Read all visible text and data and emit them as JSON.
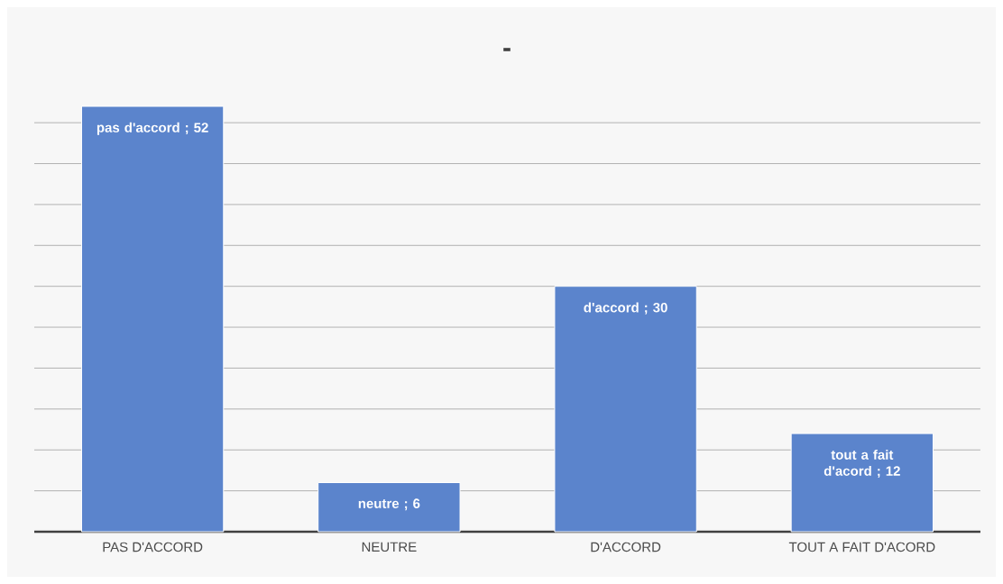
{
  "chart_data": {
    "type": "bar",
    "title": "-",
    "categories": [
      "PAS D'ACCORD",
      "NEUTRE",
      "D'ACCORD",
      "TOUT A FAIT D'ACORD"
    ],
    "values": [
      52,
      6,
      30,
      12
    ],
    "value_labels": [
      "pas d'accord ; 52",
      "neutre ; 6",
      "d'accord ; 30",
      "tout a fait d'acord ; 12"
    ],
    "color": "#5b84cc",
    "grid": "y",
    "tick_labels": "x"
  }
}
